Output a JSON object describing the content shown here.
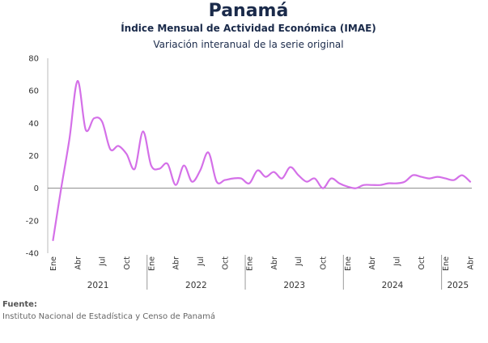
{
  "header": {
    "title": "Panamá",
    "subtitle": "Índice Mensual de Actividad Económica (IMAE)",
    "subsubtitle": "Variación interanual de la serie original"
  },
  "footer": {
    "label": "Fuente:",
    "text": "Instituto Nacional de Estadística y Censo de Panamá"
  },
  "chart_data": {
    "type": "line",
    "title": "Panamá",
    "subtitle": "Índice Mensual de Actividad Económica (IMAE)",
    "ylim": [
      -40,
      80
    ],
    "yticks": [
      -40,
      -20,
      0,
      20,
      40,
      60,
      80
    ],
    "grid": false,
    "line_color": "#d470e8",
    "x_tick_labels": [
      "Ene",
      "Abr",
      "Jul",
      "Oct",
      "Ene",
      "Abr",
      "Jul",
      "Oct",
      "Ene",
      "Abr",
      "Jul",
      "Oct",
      "Ene",
      "Abr",
      "Jul",
      "Oct",
      "Ene",
      "Abr"
    ],
    "years": [
      {
        "label": "2021",
        "months": 12
      },
      {
        "label": "2022",
        "months": 12
      },
      {
        "label": "2023",
        "months": 12
      },
      {
        "label": "2024",
        "months": 12
      },
      {
        "label": "2025",
        "months": 4
      }
    ],
    "x": [
      "2021-01",
      "2021-02",
      "2021-03",
      "2021-04",
      "2021-05",
      "2021-06",
      "2021-07",
      "2021-08",
      "2021-09",
      "2021-10",
      "2021-11",
      "2021-12",
      "2022-01",
      "2022-02",
      "2022-03",
      "2022-04",
      "2022-05",
      "2022-06",
      "2022-07",
      "2022-08",
      "2022-09",
      "2022-10",
      "2022-11",
      "2022-12",
      "2023-01",
      "2023-02",
      "2023-03",
      "2023-04",
      "2023-05",
      "2023-06",
      "2023-07",
      "2023-08",
      "2023-09",
      "2023-10",
      "2023-11",
      "2023-12",
      "2024-01",
      "2024-02",
      "2024-03",
      "2024-04",
      "2024-05",
      "2024-06",
      "2024-07",
      "2024-08",
      "2024-09",
      "2024-10",
      "2024-11",
      "2024-12",
      "2025-01",
      "2025-02",
      "2025-03",
      "2025-04"
    ],
    "values": [
      -32,
      0,
      30,
      66,
      36,
      43,
      41,
      24,
      26,
      21,
      12,
      35,
      14,
      12,
      15,
      2,
      14,
      4,
      11,
      22,
      4,
      5,
      6,
      6,
      3,
      11,
      7,
      10,
      6,
      13,
      8,
      4,
      6,
      0,
      6,
      3,
      1,
      0,
      2,
      2,
      2,
      3,
      3,
      4,
      8,
      7,
      6,
      7,
      6,
      5,
      8,
      4
    ]
  }
}
